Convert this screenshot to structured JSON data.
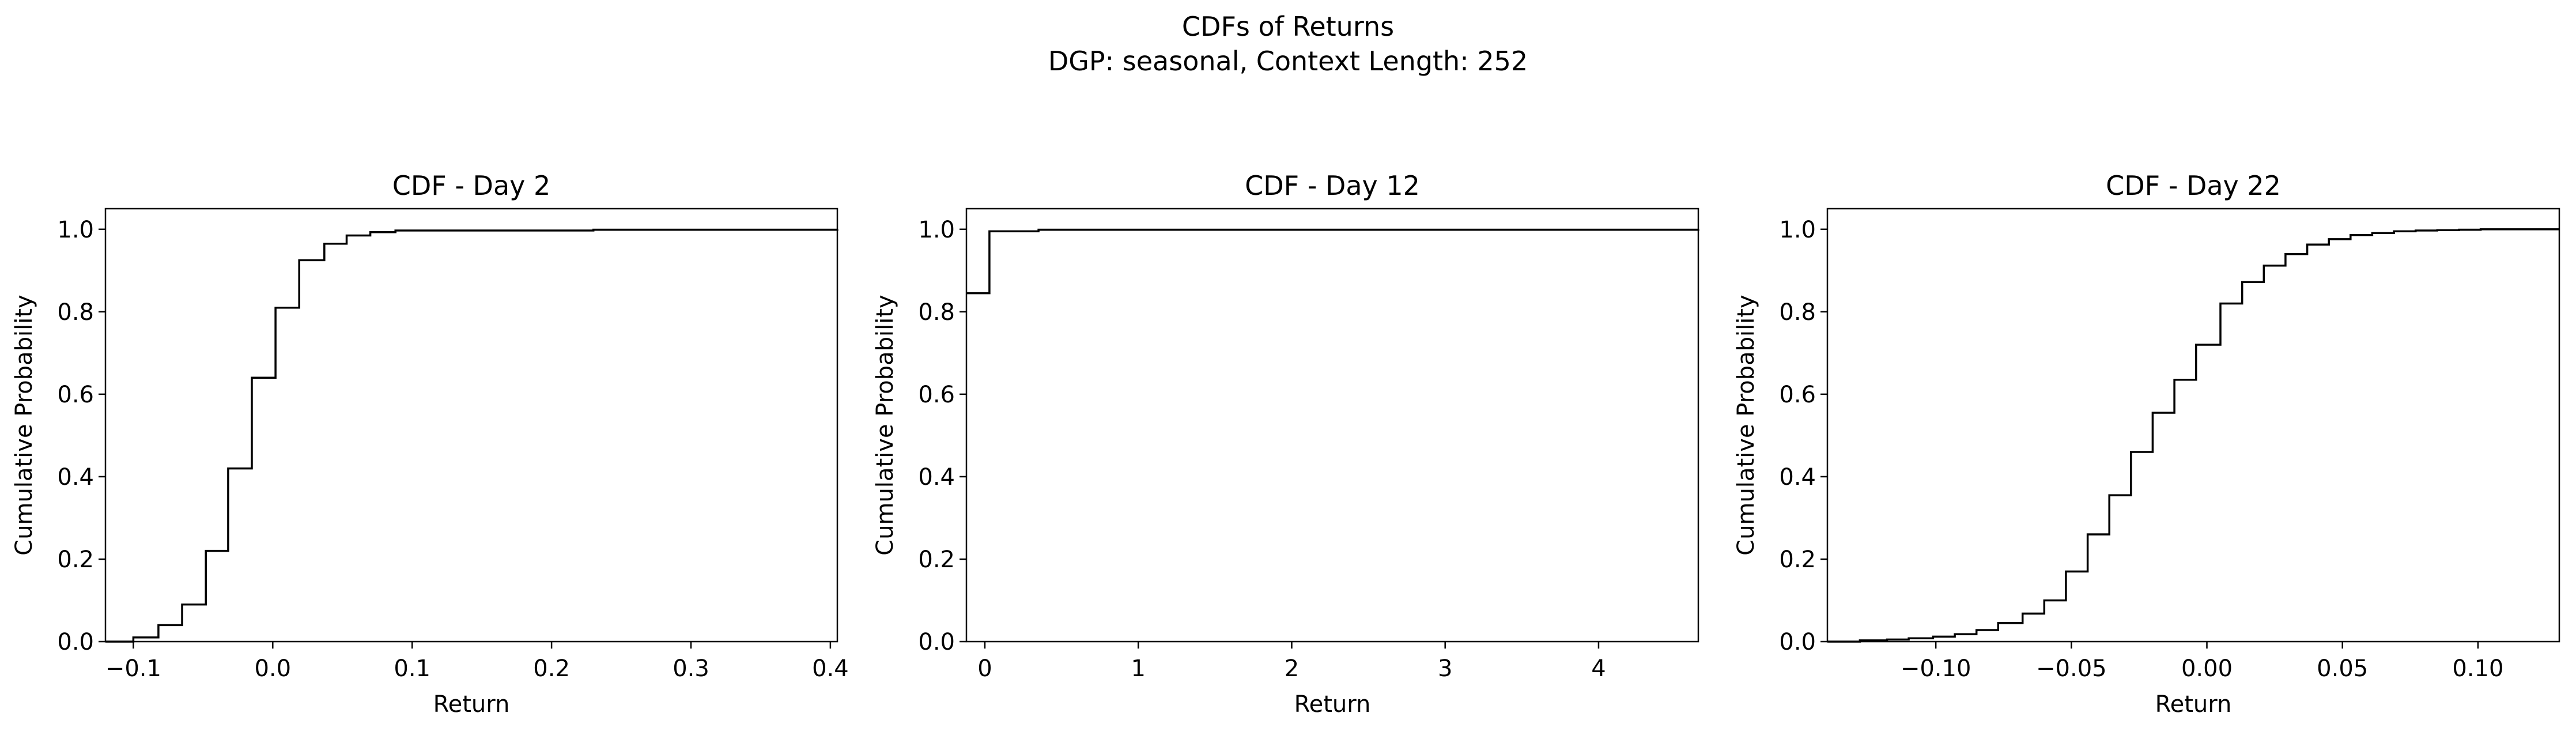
{
  "figure": {
    "title": "CDFs of Returns",
    "subtitle": "DGP: seasonal, Context Length: 252",
    "line_color": "#000000"
  },
  "chart_data": [
    {
      "type": "line",
      "step": "post",
      "title": "CDF - Day 2",
      "xlabel": "Return",
      "ylabel": "Cumulative Probability",
      "xlim": [
        -0.12,
        0.405
      ],
      "ylim": [
        0,
        1.05
      ],
      "xticks": [
        -0.1,
        0.0,
        0.1,
        0.2,
        0.3,
        0.4
      ],
      "xtick_labels": [
        "−0.1",
        "0.0",
        "0.1",
        "0.2",
        "0.3",
        "0.4"
      ],
      "yticks": [
        0.0,
        0.2,
        0.4,
        0.6,
        0.8,
        1.0
      ],
      "ytick_labels": [
        "0.0",
        "0.2",
        "0.4",
        "0.6",
        "0.8",
        "1.0"
      ],
      "grid": false,
      "legend": false,
      "x": [
        -0.12,
        -0.1,
        -0.082,
        -0.065,
        -0.048,
        -0.032,
        -0.015,
        0.002,
        0.019,
        0.037,
        0.053,
        0.07,
        0.088,
        0.23,
        0.405
      ],
      "y": [
        0.0,
        0.01,
        0.04,
        0.09,
        0.22,
        0.42,
        0.64,
        0.81,
        0.925,
        0.965,
        0.985,
        0.993,
        0.997,
        0.999,
        1.0
      ]
    },
    {
      "type": "line",
      "step": "post",
      "title": "CDF - Day 12",
      "xlabel": "Return",
      "ylabel": "Cumulative Probability",
      "xlim": [
        -0.12,
        4.65
      ],
      "ylim": [
        0,
        1.05
      ],
      "xticks": [
        0,
        1,
        2,
        3,
        4
      ],
      "xtick_labels": [
        "0",
        "1",
        "2",
        "3",
        "4"
      ],
      "yticks": [
        0.0,
        0.2,
        0.4,
        0.6,
        0.8,
        1.0
      ],
      "ytick_labels": [
        "0.0",
        "0.2",
        "0.4",
        "0.6",
        "0.8",
        "1.0"
      ],
      "grid": false,
      "legend": false,
      "x": [
        -0.12,
        0.03,
        0.35,
        4.65
      ],
      "y": [
        0.845,
        0.995,
        0.999,
        1.0
      ]
    },
    {
      "type": "line",
      "step": "post",
      "title": "CDF - Day 22",
      "xlabel": "Return",
      "ylabel": "Cumulative Probability",
      "xlim": [
        -0.14,
        0.13
      ],
      "ylim": [
        0,
        1.05
      ],
      "xticks": [
        -0.1,
        -0.05,
        0.0,
        0.05,
        0.1
      ],
      "xtick_labels": [
        "−0.10",
        "−0.05",
        "0.00",
        "0.05",
        "0.10"
      ],
      "yticks": [
        0.0,
        0.2,
        0.4,
        0.6,
        0.8,
        1.0
      ],
      "ytick_labels": [
        "0.0",
        "0.2",
        "0.4",
        "0.6",
        "0.8",
        "1.0"
      ],
      "grid": false,
      "legend": false,
      "x": [
        -0.14,
        -0.128,
        -0.118,
        -0.11,
        -0.101,
        -0.093,
        -0.085,
        -0.077,
        -0.068,
        -0.06,
        -0.052,
        -0.044,
        -0.036,
        -0.028,
        -0.02,
        -0.012,
        -0.004,
        0.005,
        0.013,
        0.021,
        0.029,
        0.037,
        0.045,
        0.053,
        0.061,
        0.069,
        0.077,
        0.085,
        0.093,
        0.101,
        0.13
      ],
      "y": [
        0.0,
        0.003,
        0.005,
        0.008,
        0.012,
        0.018,
        0.028,
        0.045,
        0.068,
        0.1,
        0.17,
        0.26,
        0.355,
        0.46,
        0.555,
        0.635,
        0.72,
        0.82,
        0.872,
        0.912,
        0.94,
        0.963,
        0.976,
        0.986,
        0.991,
        0.995,
        0.997,
        0.998,
        0.999,
        1.0,
        1.0
      ]
    }
  ]
}
